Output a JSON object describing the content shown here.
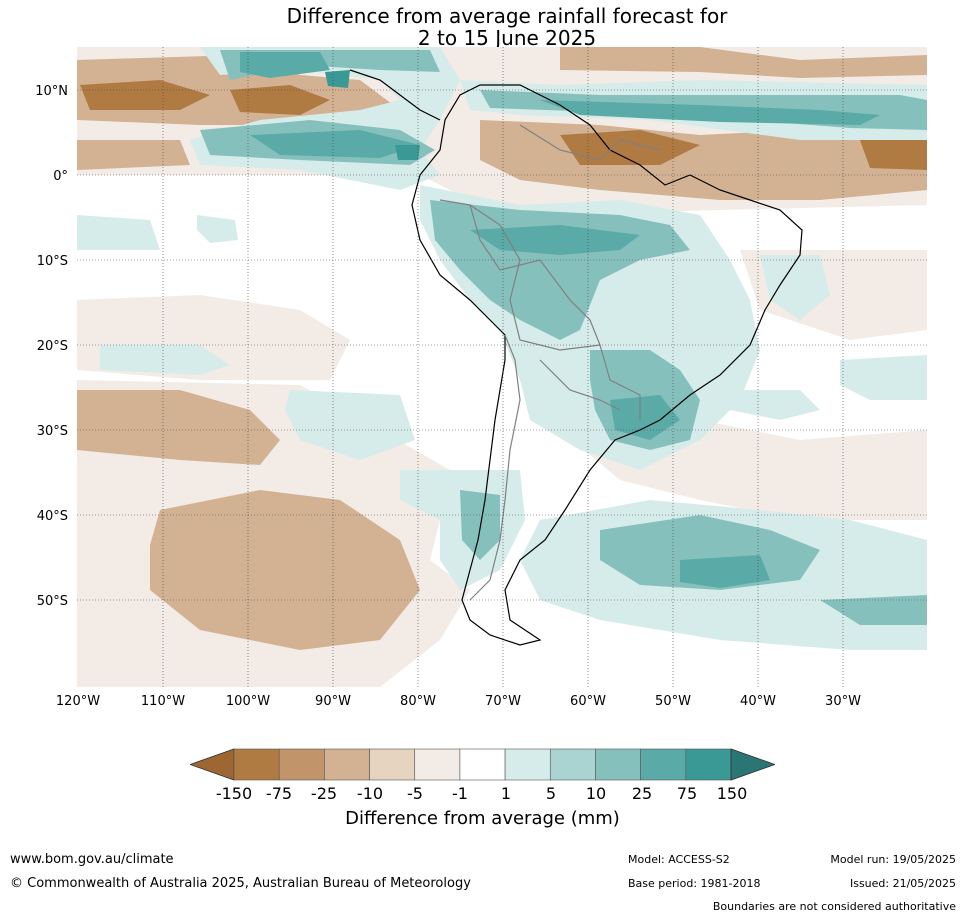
{
  "title": {
    "line1": "Difference from average rainfall forecast for",
    "line2": "2 to 15 June 2025"
  },
  "axes": {
    "lat_labels": [
      "10°N",
      "0°",
      "10°S",
      "20°S",
      "30°S",
      "40°S",
      "50°S"
    ],
    "lon_labels": [
      "120°W",
      "110°W",
      "100°W",
      "90°W",
      "80°W",
      "70°W",
      "60°W",
      "50°W",
      "40°W",
      "30°W"
    ]
  },
  "legend": {
    "title": "Difference from average (mm)",
    "ticks": [
      "-150",
      "-75",
      "-25",
      "-10",
      "-5",
      "-1",
      "1",
      "5",
      "10",
      "25",
      "75",
      "150"
    ],
    "colors": [
      "#9d6633",
      "#b07a43",
      "#c1946a",
      "#d2b293",
      "#e6d3c0",
      "#f3ebe5",
      "#ffffff",
      "#d6ecea",
      "#a9d4d1",
      "#86c0bd",
      "#5aaaa8",
      "#3a9895",
      "#2a7675"
    ]
  },
  "footer": {
    "url": "www.bom.gov.au/climate",
    "copyright": "© Commonwealth of Australia 2025, Australian Bureau of Meteorology",
    "model": "Model: ACCESS-S2",
    "base_period": "Base period: 1981-2018",
    "model_run": "Model run: 19/05/2025",
    "issued": "Issued: 21/05/2025",
    "boundary_note": "Boundaries are not considered authoritative"
  }
}
